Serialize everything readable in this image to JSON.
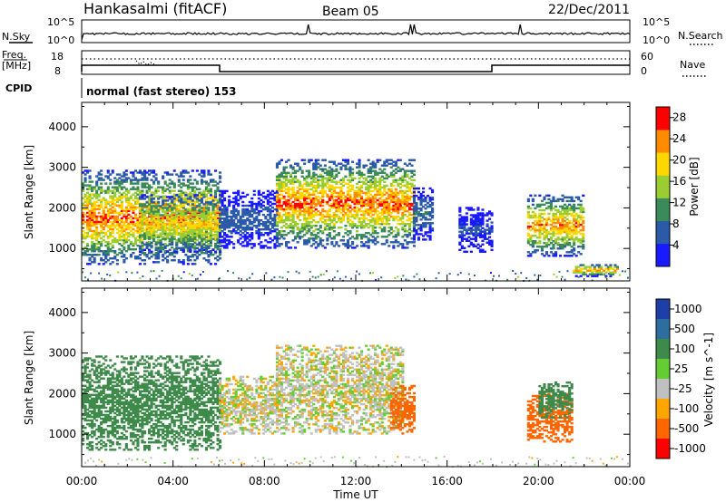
{
  "header": {
    "station": "Hankasalmi (fitACF)",
    "beam": "Beam 05",
    "date": "22/Dec/2011"
  },
  "nsky_panel": {
    "left_label": "N.Sky",
    "right_label": "N.Search",
    "left_ticks": [
      "10^5",
      "10^0"
    ],
    "right_ticks": [
      "10^5",
      "10^0"
    ]
  },
  "freq_panel": {
    "left_label_1": "Freq.",
    "left_label_2": "[MHz]",
    "right_label": "Nave",
    "left_ticks": [
      "18",
      "8"
    ],
    "right_ticks": [
      "60",
      "0"
    ]
  },
  "cpid": {
    "label": "CPID",
    "text": "normal (fast stereo) 153"
  },
  "x_axis": {
    "ticks": [
      "00:00",
      "04:00",
      "08:00",
      "12:00",
      "16:00",
      "20:00",
      "00:00"
    ],
    "label": "Time UT"
  },
  "chart_data": [
    {
      "type": "heatmap",
      "panel": "power",
      "ylabel": "Slant Range [km]",
      "yticks": [
        "1000",
        "2000",
        "3000",
        "4000"
      ],
      "ylim": [
        200,
        4600
      ],
      "x_range_hours": [
        0,
        24
      ],
      "colorbar": {
        "label": "Power [dB]",
        "ticks": [
          "4",
          "8",
          "12",
          "16",
          "20",
          "24",
          "28"
        ],
        "range": [
          0,
          30
        ],
        "colors": [
          "#1a1aff",
          "#2a5aa8",
          "#3b8a5a",
          "#9acd32",
          "#ffd700",
          "#ff8c00",
          "#ff0000"
        ]
      },
      "echo_regions": [
        {
          "t_start": 0.0,
          "t_end": 6.0,
          "r_low": 600,
          "r_high": 2900,
          "peak_db": 30
        },
        {
          "t_start": 2.5,
          "t_end": 6.0,
          "r_low": 900,
          "r_high": 2300,
          "peak_db": 24
        },
        {
          "t_start": 6.0,
          "t_end": 8.5,
          "r_low": 1000,
          "r_high": 2400,
          "peak_db": 8
        },
        {
          "t_start": 8.5,
          "t_end": 14.5,
          "r_low": 1000,
          "r_high": 3200,
          "peak_db": 30
        },
        {
          "t_start": 14.5,
          "t_end": 15.3,
          "r_low": 1200,
          "r_high": 2500,
          "peak_db": 10
        },
        {
          "t_start": 16.5,
          "t_end": 18.0,
          "r_low": 900,
          "r_high": 2000,
          "peak_db": 6
        },
        {
          "t_start": 19.5,
          "t_end": 22.0,
          "r_low": 800,
          "r_high": 2300,
          "peak_db": 28
        },
        {
          "t_start": 21.5,
          "t_end": 23.5,
          "r_low": 300,
          "r_high": 600,
          "peak_db": 28
        }
      ]
    },
    {
      "type": "heatmap",
      "panel": "velocity",
      "ylabel": "Slant Range [km]",
      "yticks": [
        "1000",
        "2000",
        "3000",
        "4000"
      ],
      "ylim": [
        200,
        4600
      ],
      "x_range_hours": [
        0,
        24
      ],
      "colorbar": {
        "label": "Velocity [m s^-1]",
        "ticks": [
          "1000",
          "500",
          "100",
          "25",
          "-25",
          "-100",
          "-500",
          "-1000"
        ],
        "colors": [
          "#1f3fa8",
          "#2e6e9e",
          "#3e8a4a",
          "#66cc33",
          "#c0c0c0",
          "#ffa500",
          "#ff6600",
          "#ff0000"
        ]
      },
      "echo_regions": [
        {
          "t_start": 0.0,
          "t_end": 6.0,
          "r_low": 600,
          "r_high": 2900,
          "velocity": 150
        },
        {
          "t_start": 6.0,
          "t_end": 8.5,
          "r_low": 1000,
          "r_high": 2400,
          "velocity": 0
        },
        {
          "t_start": 8.5,
          "t_end": 14.0,
          "r_low": 1000,
          "r_high": 3200,
          "velocity": 0
        },
        {
          "t_start": 13.5,
          "t_end": 14.5,
          "r_low": 1000,
          "r_high": 2200,
          "velocity": -200
        },
        {
          "t_start": 19.5,
          "t_end": 21.5,
          "r_low": 800,
          "r_high": 2000,
          "velocity": -150
        },
        {
          "t_start": 20.0,
          "t_end": 21.5,
          "r_low": 1400,
          "r_high": 2300,
          "velocity": 150
        }
      ]
    }
  ]
}
